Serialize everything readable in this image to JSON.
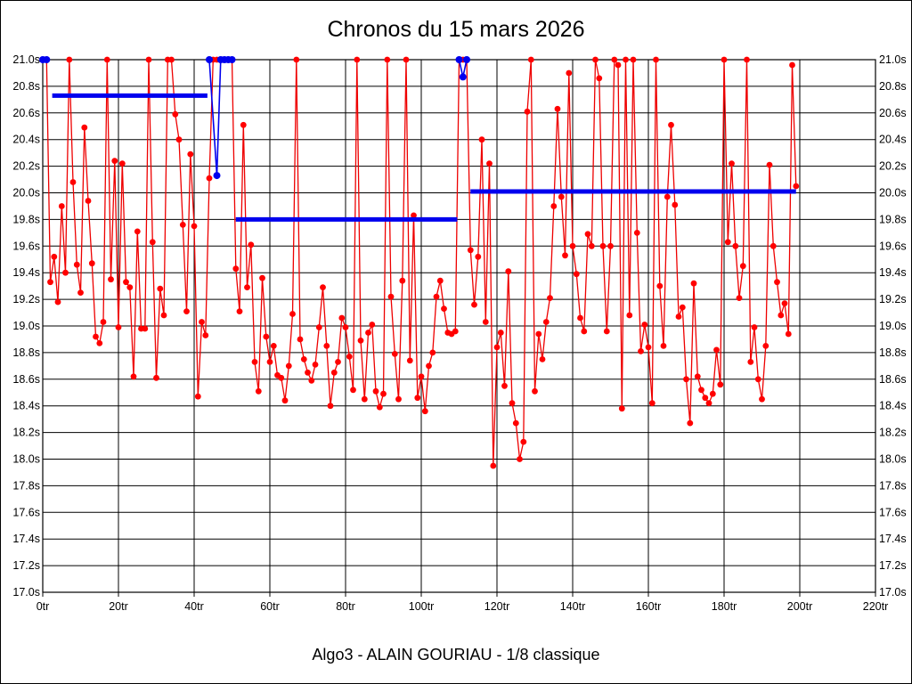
{
  "header": {
    "title": "Chronos du 15 mars 2026"
  },
  "footer": {
    "subtitle": "Algo3 - ALAIN GOURIAU - 1/8 classique"
  },
  "chart_data": {
    "type": "line",
    "title": "Chronos du 15 mars 2026",
    "subtitle": "Algo3 - ALAIN GOURIAU - 1/8 classique",
    "grid": true,
    "x_axis": {
      "unit": "tr",
      "min": 0,
      "max": 220,
      "tick_step": 20,
      "tick_labels": [
        "0tr",
        "20tr",
        "40tr",
        "60tr",
        "80tr",
        "100tr",
        "120tr",
        "140tr",
        "160tr",
        "180tr",
        "200tr",
        "220tr"
      ]
    },
    "y_axis": {
      "unit": "s",
      "min": 17.0,
      "max": 21.0,
      "tick_step": 0.2,
      "sides": [
        "left",
        "right"
      ],
      "tick_labels": [
        "21.0s",
        "20.8s",
        "20.6s",
        "20.4s",
        "20.2s",
        "20.0s",
        "19.8s",
        "19.6s",
        "19.4s",
        "19.2s",
        "19.0s",
        "18.8s",
        "18.6s",
        "18.4s",
        "18.2s",
        "18.0s",
        "17.8s",
        "17.6s",
        "17.4s",
        "17.2s",
        "17.0s"
      ]
    },
    "colors": {
      "lap_series": "#ee0000",
      "lap_points": "#ff0000",
      "marker_series": "#0000ee",
      "average_lines": "#0000ee",
      "grid": "#000000"
    },
    "cap_value": 21.0,
    "lap_times": {
      "name": "chronos",
      "start_lap": 0,
      "values": [
        21.0,
        21.0,
        19.33,
        19.52,
        19.18,
        19.9,
        19.4,
        21.0,
        20.08,
        19.46,
        19.25,
        20.49,
        19.94,
        19.47,
        18.92,
        18.87,
        19.03,
        21.0,
        19.35,
        20.24,
        18.99,
        20.22,
        19.33,
        19.29,
        18.62,
        19.71,
        18.98,
        18.98,
        21.0,
        19.63,
        18.61,
        19.28,
        19.08,
        21.0,
        21.0,
        20.59,
        20.4,
        19.76,
        19.11,
        20.29,
        19.75,
        18.47,
        19.03,
        18.93,
        20.11,
        21.0,
        21.0,
        21.0,
        21.0,
        21.0,
        21.0,
        19.43,
        19.11,
        20.51,
        19.29,
        19.61,
        18.73,
        18.51,
        19.36,
        18.92,
        18.73,
        18.85,
        18.63,
        18.61,
        18.44,
        18.7,
        19.09,
        21.0,
        18.9,
        18.75,
        18.65,
        18.59,
        18.71,
        18.99,
        19.29,
        18.85,
        18.4,
        18.65,
        18.73,
        19.06,
        18.99,
        18.77,
        18.52,
        21.0,
        18.89,
        18.45,
        18.95,
        19.01,
        18.51,
        18.39,
        18.49,
        21.0,
        19.22,
        18.79,
        18.45,
        19.34,
        21.0,
        18.74,
        19.83,
        18.46,
        18.62,
        18.36,
        18.7,
        18.8,
        19.22,
        19.34,
        19.13,
        18.95,
        18.94,
        18.96,
        21.0,
        21.0,
        21.0,
        19.57,
        19.16,
        19.52,
        20.4,
        19.03,
        20.22,
        17.95,
        18.84,
        18.95,
        18.55,
        19.41,
        18.42,
        18.27,
        18.0,
        18.13,
        20.61,
        21.0,
        18.51,
        18.94,
        18.75,
        19.03,
        19.21,
        19.9,
        20.63,
        19.97,
        19.53,
        20.9,
        19.6,
        19.39,
        19.06,
        18.96,
        19.69,
        19.6,
        21.0,
        20.86,
        19.6,
        18.96,
        19.6,
        21.0,
        20.96,
        18.38,
        21.0,
        19.08,
        21.0,
        19.7,
        18.81,
        19.01,
        18.84,
        18.42,
        21.0,
        19.3,
        18.85,
        19.97,
        20.51,
        19.91,
        19.07,
        19.14,
        18.6,
        18.27,
        19.32,
        18.62,
        18.52,
        18.46,
        18.42,
        18.49,
        18.82,
        18.56,
        21.0,
        19.63,
        20.22,
        19.6,
        19.21,
        19.45,
        21.0,
        18.73,
        18.99,
        18.6,
        18.45,
        18.85,
        20.21,
        19.6,
        19.33,
        19.08,
        19.17,
        18.94,
        20.96,
        20.05
      ]
    },
    "stop_marker_segments": [
      {
        "points": [
          [
            0,
            21.0
          ],
          [
            1,
            21.0
          ]
        ]
      },
      {
        "points": [
          [
            44,
            21.0
          ],
          [
            46,
            20.13
          ],
          [
            47,
            21.0
          ],
          [
            48,
            21.0
          ],
          [
            49,
            21.0
          ],
          [
            50,
            21.0
          ]
        ]
      },
      {
        "points": [
          [
            110,
            21.0
          ],
          [
            111,
            20.87
          ],
          [
            112,
            21.0
          ]
        ]
      }
    ],
    "average_lines": [
      {
        "from_lap": 2.5,
        "to_lap": 43.5,
        "value": 20.73
      },
      {
        "from_lap": 51,
        "to_lap": 109.5,
        "value": 19.8
      },
      {
        "from_lap": 113,
        "to_lap": 199,
        "value": 20.01
      }
    ]
  }
}
